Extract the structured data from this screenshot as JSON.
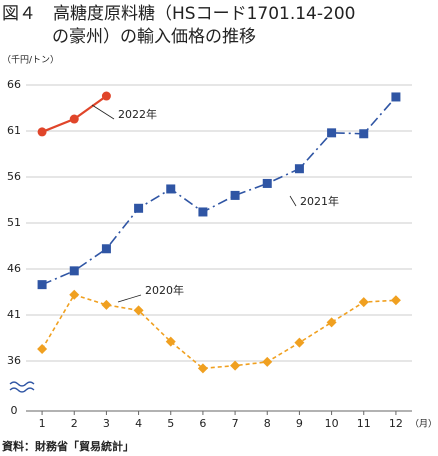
{
  "chart_data": {
    "type": "line",
    "title_lines": [
      "図４　高糖度原料糖（HSコード1701.14-200",
      "の豪州）の輸入価格の推移"
    ],
    "y_unit": "（千円/トン）",
    "x_unit": "（月）",
    "source": "資料：財務省「貿易統計」",
    "categories": [
      "1",
      "2",
      "3",
      "4",
      "5",
      "6",
      "7",
      "8",
      "9",
      "10",
      "11",
      "12"
    ],
    "series": [
      {
        "name": "2020年",
        "color": "#f0a020",
        "values": [
          37.3,
          43.2,
          42.1,
          41.5,
          38.1,
          35.2,
          35.5,
          35.9,
          38.0,
          40.2,
          42.4,
          42.6
        ]
      },
      {
        "name": "2021年",
        "color": "#2f55a4",
        "values": [
          44.3,
          45.8,
          48.2,
          52.6,
          54.7,
          52.2,
          54.0,
          55.3,
          56.9,
          60.8,
          60.7,
          64.7
        ]
      },
      {
        "name": "2022年",
        "color": "#e0452a",
        "values": [
          60.9,
          62.3,
          64.8,
          null,
          null,
          null,
          null,
          null,
          null,
          null,
          null,
          null
        ]
      }
    ],
    "ylim": [
      0,
      66
    ],
    "axis_break": [
      0,
      31
    ],
    "yticks": [
      0,
      36,
      41,
      46,
      51,
      56,
      61,
      66
    ],
    "grid": true
  }
}
